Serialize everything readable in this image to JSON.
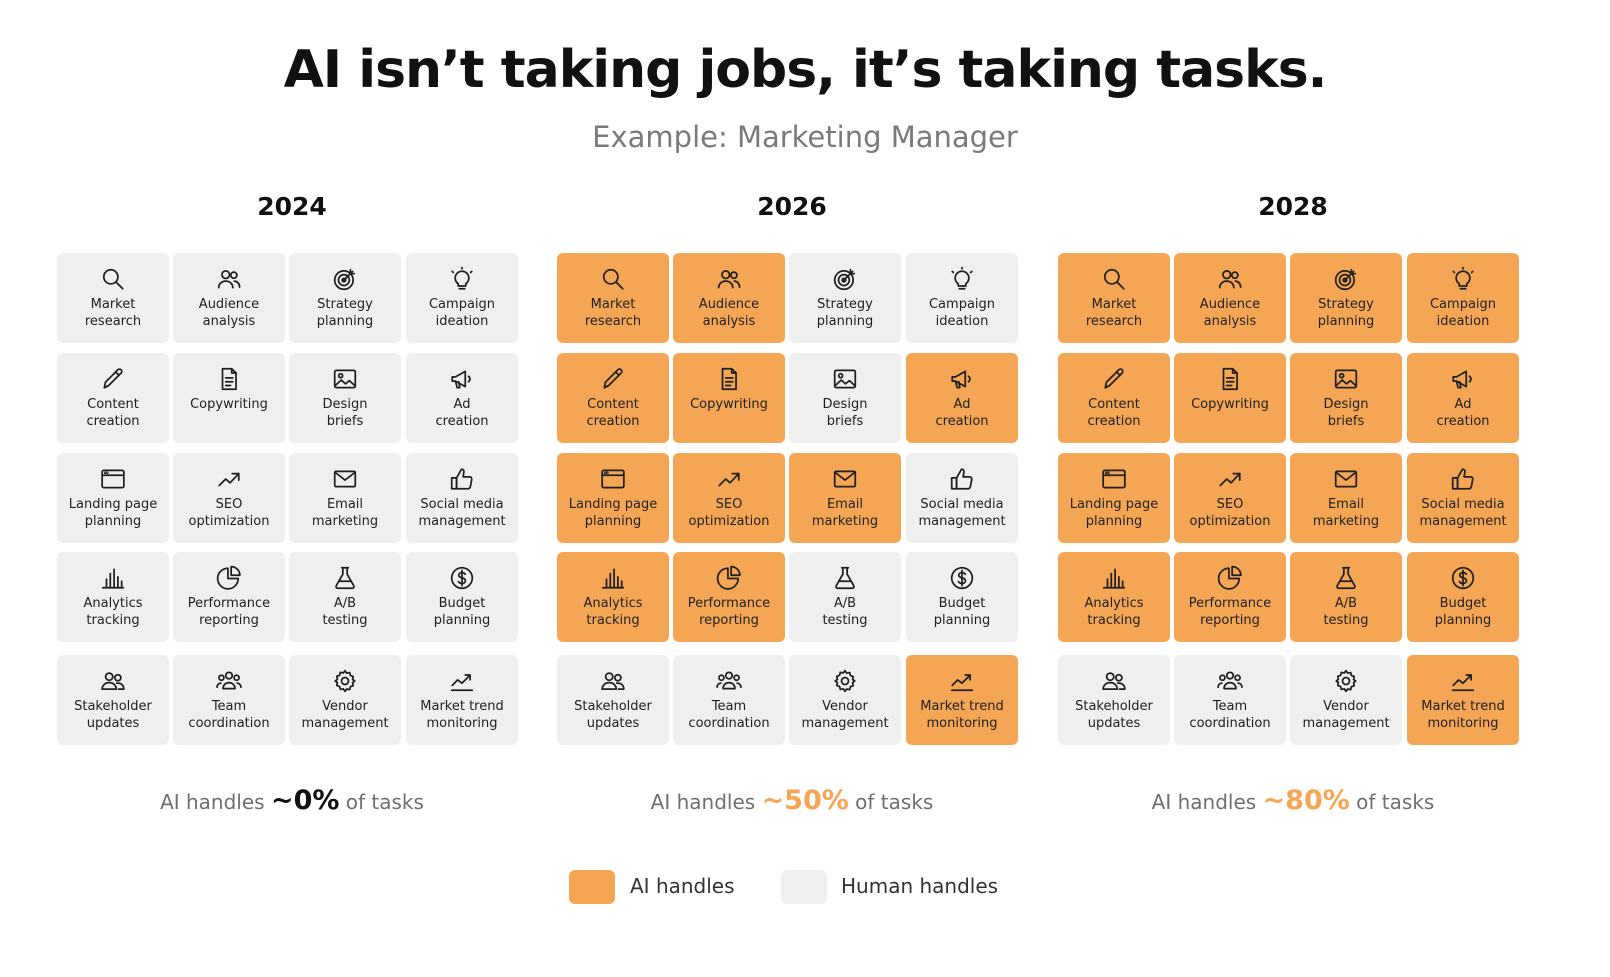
{
  "title": "AI isn’t taking jobs, it’s taking tasks.",
  "subtitle": "Example: Marketing Manager",
  "colors": {
    "ai": "#f5a655",
    "human": "#efefef"
  },
  "tasks": [
    {
      "label": "Market\nresearch",
      "icon": "search-icon"
    },
    {
      "label": "Audience\nanalysis",
      "icon": "users-icon"
    },
    {
      "label": "Strategy\nplanning",
      "icon": "target-icon"
    },
    {
      "label": "Campaign\nideation",
      "icon": "lightbulb-icon"
    },
    {
      "label": "Content\ncreation",
      "icon": "pencil-icon"
    },
    {
      "label": "Copywriting",
      "icon": "document-icon"
    },
    {
      "label": "Design\nbriefs",
      "icon": "image-icon"
    },
    {
      "label": "Ad\ncreation",
      "icon": "megaphone-icon"
    },
    {
      "label": "Landing page\nplanning",
      "icon": "browser-window-icon"
    },
    {
      "label": "SEO\noptimization",
      "icon": "trend-arrow-icon"
    },
    {
      "label": "Email\nmarketing",
      "icon": "envelope-icon"
    },
    {
      "label": "Social media\nmanagement",
      "icon": "thumbs-up-icon"
    },
    {
      "label": "Analytics\ntracking",
      "icon": "bar-chart-icon"
    },
    {
      "label": "Performance\nreporting",
      "icon": "pie-chart-icon"
    },
    {
      "label": "A/B\ntesting",
      "icon": "flask-icon"
    },
    {
      "label": "Budget\nplanning",
      "icon": "dollar-coin-icon"
    },
    {
      "label": "Stakeholder\nupdates",
      "icon": "people-icon"
    },
    {
      "label": "Team\ncoordination",
      "icon": "team-icon"
    },
    {
      "label": "Vendor\nmanagement",
      "icon": "gear-icon"
    },
    {
      "label": "Market trend\nmonitoring",
      "icon": "trend-line-icon"
    }
  ],
  "panels": [
    {
      "year": "2024",
      "caption_prefix": "AI handles",
      "caption_pct": "~0%",
      "caption_suffix": "of tasks",
      "pct_highlight": false,
      "ai_handled": [
        false,
        false,
        false,
        false,
        false,
        false,
        false,
        false,
        false,
        false,
        false,
        false,
        false,
        false,
        false,
        false,
        false,
        false,
        false,
        false
      ]
    },
    {
      "year": "2026",
      "caption_prefix": "AI handles",
      "caption_pct": "~50%",
      "caption_suffix": "of tasks",
      "pct_highlight": true,
      "ai_handled": [
        true,
        true,
        false,
        false,
        true,
        true,
        false,
        true,
        true,
        true,
        true,
        false,
        true,
        true,
        false,
        false,
        false,
        false,
        false,
        true
      ]
    },
    {
      "year": "2028",
      "caption_prefix": "AI handles",
      "caption_pct": "~80%",
      "caption_suffix": "of tasks",
      "pct_highlight": true,
      "ai_handled": [
        true,
        true,
        true,
        true,
        true,
        true,
        true,
        true,
        true,
        true,
        true,
        true,
        true,
        true,
        true,
        true,
        false,
        false,
        false,
        true
      ]
    }
  ],
  "legend": [
    {
      "label": "AI handles",
      "key": "ai"
    },
    {
      "label": "Human handles",
      "key": "human"
    }
  ]
}
